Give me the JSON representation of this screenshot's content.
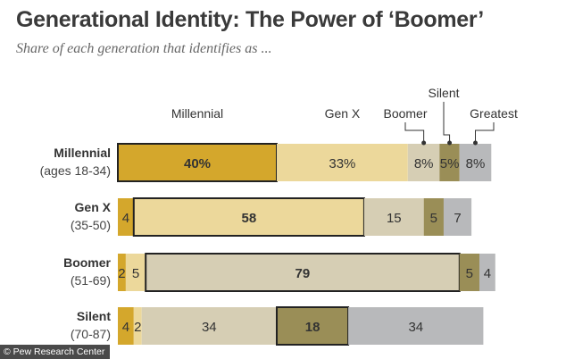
{
  "title": "Generational Identity: The Power of ‘Boomer’",
  "subtitle": "Share of each generation that identifies as ...",
  "source": "© Pew Research Center",
  "chart_data": {
    "type": "bar",
    "stacked": true,
    "orientation": "horizontal",
    "title": "Generational Identity: The Power of ‘Boomer’",
    "subtitle": "Share of each generation that identifies as ...",
    "legend": [
      "Millennial",
      "Gen X",
      "Boomer",
      "Silent",
      "Greatest"
    ],
    "categories": [
      {
        "name": "Millennial",
        "sub": "(ages 18-34)"
      },
      {
        "name": "Gen X",
        "sub": "(35-50)"
      },
      {
        "name": "Boomer",
        "sub": "(51-69)"
      },
      {
        "name": "Silent",
        "sub": "(70-87)"
      }
    ],
    "series": [
      {
        "name": "Millennial",
        "color": "#d4a72c",
        "values": [
          40,
          4,
          2,
          4
        ],
        "labels": [
          "40%",
          "4",
          "2",
          "4"
        ]
      },
      {
        "name": "Gen X",
        "color": "#ecd89b",
        "values": [
          33,
          58,
          5,
          2
        ],
        "labels": [
          "33%",
          "58",
          "5",
          "2"
        ]
      },
      {
        "name": "Boomer",
        "color": "#d6ceb4",
        "values": [
          8,
          15,
          79,
          34
        ],
        "labels": [
          "8%",
          "15",
          "79",
          "34"
        ]
      },
      {
        "name": "Silent",
        "color": "#9a8e57",
        "values": [
          5,
          5,
          5,
          18
        ],
        "labels": [
          "5%",
          "5",
          "5",
          "18"
        ]
      },
      {
        "name": "Greatest",
        "color": "#b8b9bb",
        "values": [
          8,
          7,
          4,
          34
        ],
        "labels": [
          "8%",
          "7",
          "4",
          "34"
        ]
      }
    ],
    "highlight": [
      0,
      1,
      2,
      3
    ],
    "xlim": [
      0,
      100
    ]
  }
}
